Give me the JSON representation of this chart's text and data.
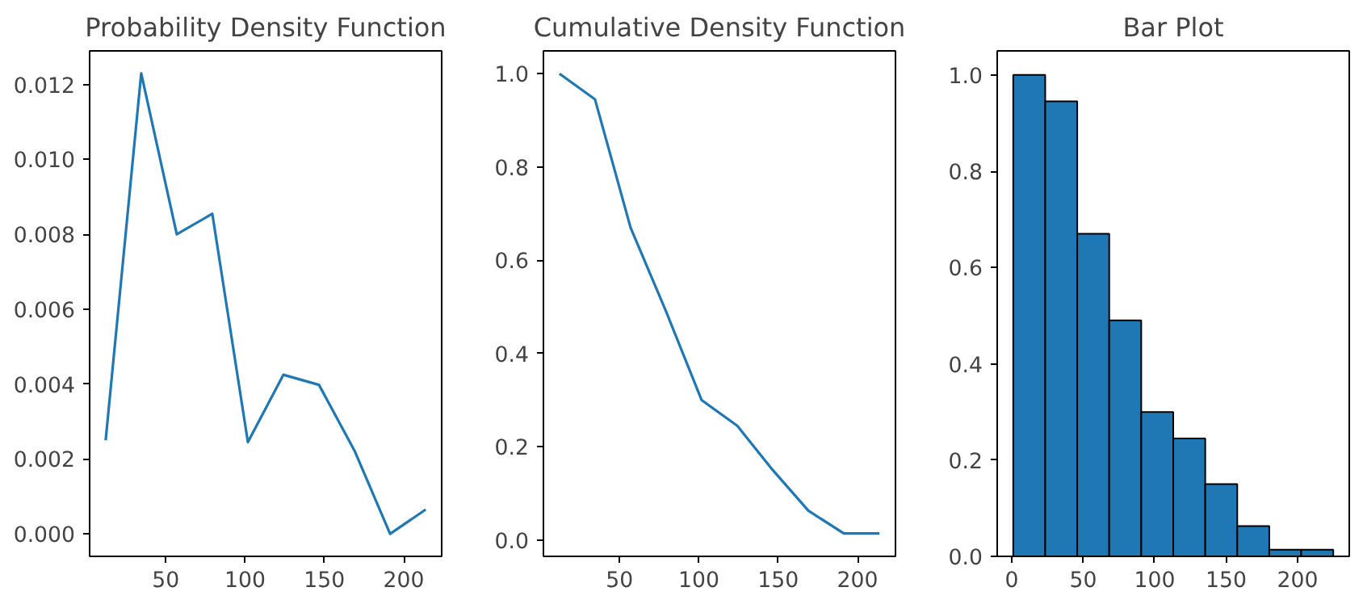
{
  "chart_data": [
    {
      "type": "line",
      "title": "Probability Density Function",
      "x": [
        12.2,
        34.6,
        57,
        79.4,
        101.8,
        124.2,
        146.6,
        169,
        191.4,
        213.8
      ],
      "series": [
        {
          "color": "#1f77b4",
          "values": [
            0.0025,
            0.0123,
            0.008,
            0.00855,
            0.00245,
            0.00425,
            0.00398,
            0.00222,
            0.0,
            0.00065
          ]
        }
      ],
      "xlim": [
        2.1,
        223.9
      ],
      "xticks": [
        50,
        100,
        150,
        200
      ],
      "ylim": [
        -0.0006,
        0.0129
      ],
      "yticks": [
        {
          "value": 0,
          "label": "0.000"
        },
        {
          "value": 0.002,
          "label": "0.002"
        },
        {
          "value": 0.004,
          "label": "0.004"
        },
        {
          "value": 0.006,
          "label": "0.006"
        },
        {
          "value": 0.008,
          "label": "0.008"
        },
        {
          "value": 0.01,
          "label": "0.010"
        },
        {
          "value": 0.012,
          "label": "0.012"
        }
      ],
      "grid": false
    },
    {
      "type": "line",
      "title": "Cumulative Density Function",
      "x": [
        12.2,
        34.6,
        57,
        79.4,
        101.8,
        124.2,
        146.6,
        169,
        191.4,
        213.8
      ],
      "series": [
        {
          "color": "#1f77b4",
          "values": [
            1.0,
            0.945,
            0.67,
            0.49,
            0.3,
            0.245,
            0.15,
            0.063,
            0.014,
            0.014
          ]
        }
      ],
      "xlim": [
        2.1,
        223.9
      ],
      "xticks": [
        50,
        100,
        150,
        200
      ],
      "ylim": [
        -0.035,
        1.049
      ],
      "yticks": [
        {
          "value": 0,
          "label": "0.0"
        },
        {
          "value": 0.2,
          "label": "0.2"
        },
        {
          "value": 0.4,
          "label": "0.4"
        },
        {
          "value": 0.6,
          "label": "0.6"
        },
        {
          "value": 0.8,
          "label": "0.8"
        },
        {
          "value": 1,
          "label": "1.0"
        }
      ],
      "grid": false
    },
    {
      "type": "histogram",
      "title": "Bar Plot",
      "bins": [
        1,
        23.4,
        45.8,
        68.2,
        90.6,
        113,
        135.4,
        157.8,
        180.2,
        202.6,
        225
      ],
      "values": [
        1.0,
        0.945,
        0.67,
        0.49,
        0.3,
        0.245,
        0.15,
        0.063,
        0.014,
        0.014
      ],
      "color": "#1f77b4",
      "xlim": [
        -10.2,
        236.2
      ],
      "xticks": [
        0,
        50,
        100,
        150,
        200
      ],
      "ylim": [
        0,
        1.05
      ],
      "yticks": [
        {
          "value": 0,
          "label": "0.0"
        },
        {
          "value": 0.2,
          "label": "0.2"
        },
        {
          "value": 0.4,
          "label": "0.4"
        },
        {
          "value": 0.6,
          "label": "0.6"
        },
        {
          "value": 0.8,
          "label": "0.8"
        },
        {
          "value": 1,
          "label": "1.0"
        }
      ],
      "grid": false
    }
  ]
}
